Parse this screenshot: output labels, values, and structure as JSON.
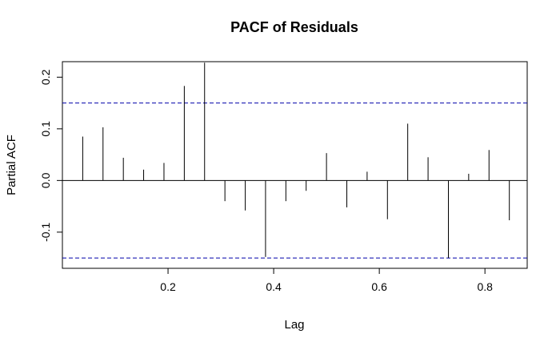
{
  "chart_data": {
    "type": "bar",
    "title": "PACF of Residuals",
    "xlabel": "Lag",
    "ylabel": "Partial ACF",
    "xlim": [
      0.0,
      0.88
    ],
    "ylim": [
      -0.17,
      0.23
    ],
    "x_ticks": [
      0.2,
      0.4,
      0.6,
      0.8
    ],
    "x_tick_labels": [
      "0.2",
      "0.4",
      "0.6",
      "0.8"
    ],
    "y_ticks": [
      -0.1,
      0.0,
      0.1,
      0.2
    ],
    "y_tick_labels": [
      "-0.1",
      "0.0",
      "0.1",
      "0.2"
    ],
    "confidence_band": 0.15,
    "colors": {
      "lines": "#000000",
      "band": "#0000aa"
    },
    "series": [
      {
        "x": [
          0.0385,
          0.0769,
          0.1154,
          0.1538,
          0.1923,
          0.2308,
          0.2692,
          0.3077,
          0.3462,
          0.3846,
          0.4231,
          0.4615,
          0.5,
          0.5385,
          0.5769,
          0.6154,
          0.6538,
          0.6923,
          0.7308,
          0.7692,
          0.8077,
          0.8462
        ],
        "values": [
          0.085,
          0.103,
          0.044,
          0.021,
          0.034,
          0.183,
          0.228,
          -0.04,
          -0.058,
          -0.148,
          -0.04,
          -0.02,
          0.053,
          -0.052,
          0.017,
          -0.075,
          0.11,
          0.045,
          -0.15,
          0.013,
          0.059,
          -0.077
        ]
      }
    ]
  }
}
